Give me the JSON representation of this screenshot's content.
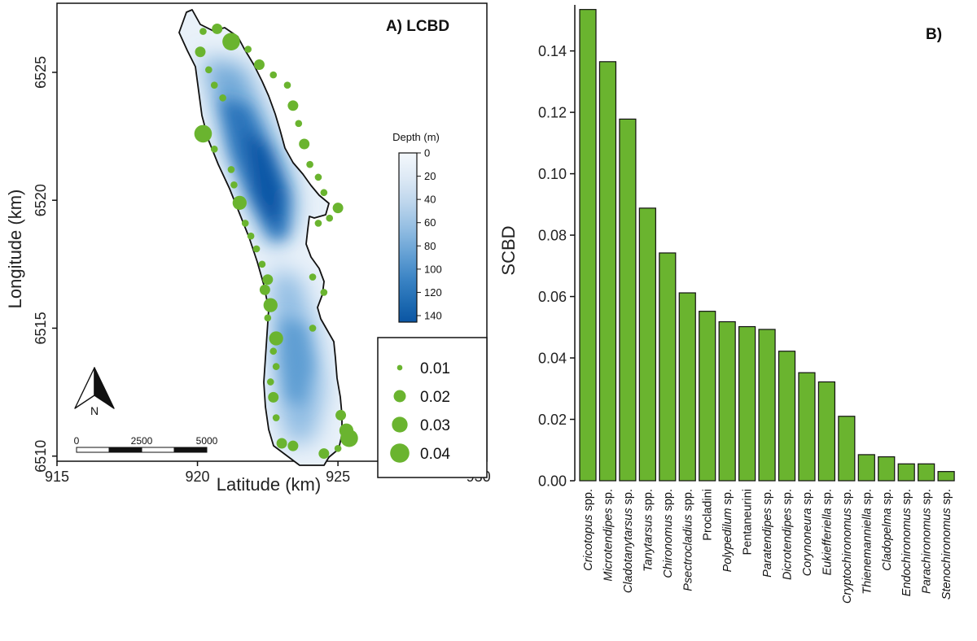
{
  "chart_data": [
    {
      "type": "scatter",
      "title": "A) LCBD",
      "xlabel": "Latitude (km)",
      "ylabel": "Longitude (km)",
      "x_ticks": [
        915,
        920,
        925,
        930
      ],
      "y_ticks": [
        6510,
        6515,
        6520,
        6525
      ],
      "xlim": [
        915,
        930.3
      ],
      "ylim": [
        6509.8,
        6527.7
      ],
      "grid": false,
      "colors": {
        "points": "#6ab42f",
        "outline": "#111111",
        "water_shallow": "#eaf2fa",
        "water_deep": "#0b55a3"
      },
      "depth_legend": {
        "title": "Depth (m)",
        "ticks": [
          0,
          20,
          40,
          60,
          80,
          100,
          120,
          140
        ]
      },
      "size_legend": {
        "values": [
          "0.01",
          "0.02",
          "0.03",
          "0.04"
        ]
      },
      "north_arrow": "N",
      "scale_bar": {
        "labels": [
          "0",
          "2500",
          "5000"
        ]
      },
      "points": [
        {
          "x": 920.2,
          "y": 6526.6,
          "v": 0.01
        },
        {
          "x": 920.7,
          "y": 6526.7,
          "v": 0.02
        },
        {
          "x": 920.1,
          "y": 6525.8,
          "v": 0.02
        },
        {
          "x": 921.2,
          "y": 6526.2,
          "v": 0.04
        },
        {
          "x": 921.8,
          "y": 6525.9,
          "v": 0.01
        },
        {
          "x": 922.2,
          "y": 6525.3,
          "v": 0.02
        },
        {
          "x": 922.7,
          "y": 6524.9,
          "v": 0.01
        },
        {
          "x": 923.2,
          "y": 6524.5,
          "v": 0.01
        },
        {
          "x": 920.4,
          "y": 6525.1,
          "v": 0.01
        },
        {
          "x": 920.6,
          "y": 6524.5,
          "v": 0.01
        },
        {
          "x": 920.9,
          "y": 6524.0,
          "v": 0.01
        },
        {
          "x": 923.4,
          "y": 6523.7,
          "v": 0.02
        },
        {
          "x": 923.6,
          "y": 6523.0,
          "v": 0.01
        },
        {
          "x": 920.2,
          "y": 6522.6,
          "v": 0.04
        },
        {
          "x": 920.6,
          "y": 6522.0,
          "v": 0.01
        },
        {
          "x": 923.8,
          "y": 6522.2,
          "v": 0.02
        },
        {
          "x": 924.0,
          "y": 6521.4,
          "v": 0.01
        },
        {
          "x": 921.2,
          "y": 6521.2,
          "v": 0.01
        },
        {
          "x": 924.3,
          "y": 6520.9,
          "v": 0.01
        },
        {
          "x": 921.3,
          "y": 6520.6,
          "v": 0.01
        },
        {
          "x": 924.5,
          "y": 6520.3,
          "v": 0.01
        },
        {
          "x": 921.5,
          "y": 6519.9,
          "v": 0.03
        },
        {
          "x": 925.0,
          "y": 6519.7,
          "v": 0.02
        },
        {
          "x": 924.7,
          "y": 6519.3,
          "v": 0.01
        },
        {
          "x": 924.3,
          "y": 6519.1,
          "v": 0.01
        },
        {
          "x": 921.7,
          "y": 6519.1,
          "v": 0.01
        },
        {
          "x": 921.9,
          "y": 6518.6,
          "v": 0.01
        },
        {
          "x": 922.1,
          "y": 6518.1,
          "v": 0.01
        },
        {
          "x": 922.3,
          "y": 6517.5,
          "v": 0.01
        },
        {
          "x": 924.1,
          "y": 6517.0,
          "v": 0.01
        },
        {
          "x": 922.5,
          "y": 6516.9,
          "v": 0.02
        },
        {
          "x": 922.4,
          "y": 6516.5,
          "v": 0.02
        },
        {
          "x": 924.5,
          "y": 6516.4,
          "v": 0.01
        },
        {
          "x": 922.6,
          "y": 6515.9,
          "v": 0.03
        },
        {
          "x": 922.5,
          "y": 6515.4,
          "v": 0.01
        },
        {
          "x": 924.1,
          "y": 6515.0,
          "v": 0.01
        },
        {
          "x": 922.8,
          "y": 6514.6,
          "v": 0.03
        },
        {
          "x": 922.7,
          "y": 6514.1,
          "v": 0.01
        },
        {
          "x": 922.8,
          "y": 6513.5,
          "v": 0.01
        },
        {
          "x": 922.6,
          "y": 6512.9,
          "v": 0.01
        },
        {
          "x": 922.7,
          "y": 6512.3,
          "v": 0.02
        },
        {
          "x": 922.8,
          "y": 6511.5,
          "v": 0.01
        },
        {
          "x": 923.0,
          "y": 6510.5,
          "v": 0.02
        },
        {
          "x": 923.4,
          "y": 6510.4,
          "v": 0.02
        },
        {
          "x": 925.1,
          "y": 6511.6,
          "v": 0.02
        },
        {
          "x": 925.3,
          "y": 6511.0,
          "v": 0.03
        },
        {
          "x": 925.4,
          "y": 6510.7,
          "v": 0.04
        },
        {
          "x": 925.0,
          "y": 6510.3,
          "v": 0.01
        },
        {
          "x": 924.5,
          "y": 6510.1,
          "v": 0.02
        }
      ]
    },
    {
      "type": "bar",
      "title": "B)",
      "xlabel": "",
      "ylabel": "SCBD",
      "ylim": [
        0,
        0.155
      ],
      "y_ticks": [
        "0.00",
        "0.02",
        "0.04",
        "0.06",
        "0.08",
        "0.10",
        "0.12",
        "0.14"
      ],
      "grid": false,
      "colors": {
        "bar": "#6ab42f",
        "edge": "#111111"
      },
      "categories": [
        {
          "label": "Cricotopus spp.",
          "italic": "Cricotopus",
          "rest": " spp."
        },
        {
          "label": "Microtendipes sp.",
          "italic": "Microtendipes",
          "rest": " sp."
        },
        {
          "label": "Cladotanytarsus sp.",
          "italic": "Cladotanytarsus",
          "rest": " sp."
        },
        {
          "label": "Tanytarsus spp.",
          "italic": "Tanytarsus",
          "rest": " spp."
        },
        {
          "label": "Chironomus spp.",
          "italic": "Chironomus",
          "rest": " spp."
        },
        {
          "label": "Psectrocladius spp.",
          "italic": "Psectrocladius",
          "rest": " spp."
        },
        {
          "label": "Procladini",
          "italic": "",
          "rest": "Procladini"
        },
        {
          "label": "Polypedilum sp.",
          "italic": "Polypedilum",
          "rest": " sp."
        },
        {
          "label": "Pentaneurini",
          "italic": "",
          "rest": "Pentaneurini"
        },
        {
          "label": "Paratendipes sp.",
          "italic": "Paratendipes",
          "rest": " sp."
        },
        {
          "label": "Dicrotendipes sp.",
          "italic": "Dicrotendipes",
          "rest": " sp."
        },
        {
          "label": "Corynoneura sp.",
          "italic": "Corynoneura",
          "rest": " sp."
        },
        {
          "label": "Eukiefferiella sp.",
          "italic": "Eukiefferiella",
          "rest": " sp."
        },
        {
          "label": "Cryptochironomus sp.",
          "italic": "Cryptochironomus",
          "rest": " sp."
        },
        {
          "label": "Thienemanniella sp.",
          "italic": "Thienemanniella",
          "rest": " sp."
        },
        {
          "label": "Cladopelma sp.",
          "italic": "Cladopelma",
          "rest": " sp."
        },
        {
          "label": "Endochironomus sp.",
          "italic": "Endochironomus",
          "rest": " sp."
        },
        {
          "label": "Parachironomus sp.",
          "italic": "Parachironomus",
          "rest": " sp."
        },
        {
          "label": "Stenochironomus sp.",
          "italic": "Stenochironomus",
          "rest": " sp."
        }
      ],
      "values": [
        0.1535,
        0.1365,
        0.1178,
        0.0888,
        0.0742,
        0.0612,
        0.0552,
        0.0518,
        0.0502,
        0.0493,
        0.0422,
        0.0352,
        0.0322,
        0.021,
        0.0085,
        0.0078,
        0.0055,
        0.0055,
        0.003
      ]
    }
  ]
}
